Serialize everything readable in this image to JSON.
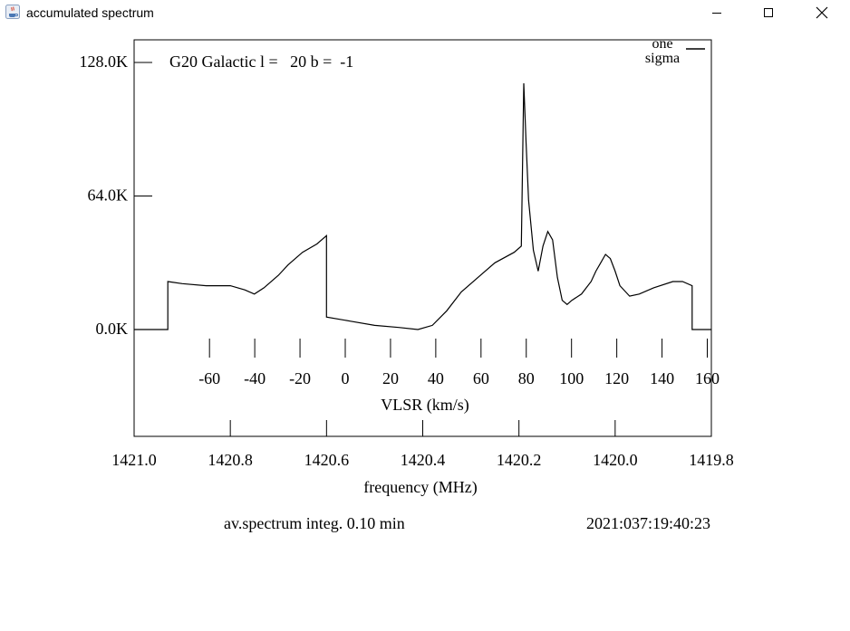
{
  "window": {
    "title": "accumulated spectrum",
    "controls": {
      "minimize": "minimize",
      "maximize": "maximize",
      "close": "close"
    }
  },
  "chart_data": {
    "type": "line",
    "title": "G20 Galactic l =   20 b =  -1",
    "legend": {
      "label_line1": "one",
      "label_line2": "sigma",
      "placement": "top-right"
    },
    "y_tick_labels": [
      "128.0K",
      "64.0K",
      "0.0K"
    ],
    "y_ticks": [
      128,
      64,
      0
    ],
    "ylim": [
      -52,
      142
    ],
    "x_velocity_label": "VLSR (km/s)",
    "x_velocity_ticks": [
      -60,
      -40,
      -20,
      0,
      20,
      40,
      60,
      80,
      100,
      120,
      140,
      160
    ],
    "x_frequency_label": "frequency (MHz)",
    "x_frequency_ticks": [
      "1421.0",
      "1420.8",
      "1420.6",
      "1420.4",
      "1420.2",
      "1420.0",
      "1419.8"
    ],
    "x_frequency_values": [
      1421.0,
      1420.8,
      1420.6,
      1420.4,
      1420.2,
      1420.0,
      1419.8
    ],
    "xlim_mhz": [
      1421.0,
      1419.8
    ],
    "series": [
      {
        "x_mhz": [
          1421.0,
          1420.93,
          1420.93,
          1420.9,
          1420.85,
          1420.8,
          1420.77,
          1420.75,
          1420.73,
          1420.7,
          1420.68,
          1420.65,
          1420.62,
          1420.6,
          1420.6,
          1420.55,
          1420.5,
          1420.45,
          1420.41,
          1420.38,
          1420.35,
          1420.32,
          1420.28,
          1420.25,
          1420.21,
          1420.195,
          1420.19,
          1420.185,
          1420.18,
          1420.17,
          1420.16,
          1420.15,
          1420.14,
          1420.13,
          1420.12,
          1420.11,
          1420.1,
          1420.09,
          1420.07,
          1420.05,
          1420.04,
          1420.03,
          1420.02,
          1420.01,
          1420.0,
          1419.99,
          1419.97,
          1419.95,
          1419.92,
          1419.88,
          1419.86,
          1419.84,
          1419.84,
          1419.8
        ],
        "y_kelvin": [
          0,
          0,
          23,
          22,
          21,
          21,
          19,
          17,
          20,
          26,
          31,
          37,
          41,
          45,
          6,
          4,
          2,
          1,
          0,
          2,
          9,
          18,
          26,
          32,
          37,
          40,
          118,
          89,
          62,
          38,
          28,
          40,
          47,
          43,
          25,
          14,
          12,
          14,
          17,
          23,
          28,
          32,
          36,
          34,
          28,
          21,
          16,
          17,
          20,
          23,
          23,
          21,
          0,
          0
        ]
      }
    ],
    "footer_left": "av.spectrum integ. 0.10 min",
    "footer_right": "2021:037:19:40:23"
  }
}
